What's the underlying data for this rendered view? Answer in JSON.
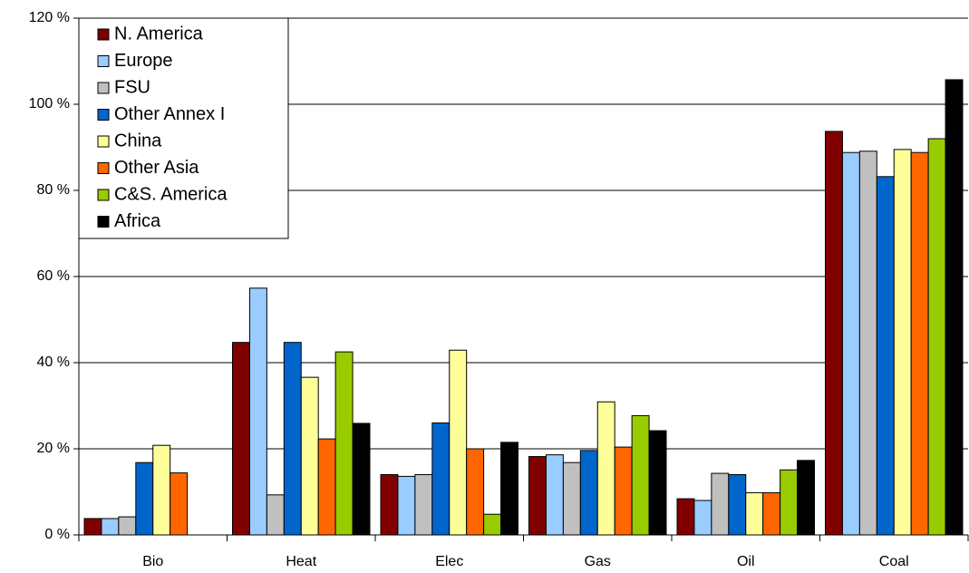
{
  "chart_data": {
    "type": "bar",
    "categories": [
      "Bio",
      "Heat",
      "Elec",
      "Gas",
      "Oil",
      "Coal"
    ],
    "series": [
      {
        "name": "N. America",
        "color": "#800000",
        "values": [
          3.8,
          44.7,
          14.0,
          18.2,
          8.4,
          93.7
        ]
      },
      {
        "name": "Europe",
        "color": "#99ccff",
        "values": [
          3.8,
          57.3,
          13.6,
          18.6,
          8.0,
          88.8
        ]
      },
      {
        "name": "FSU",
        "color": "#c0c0c0",
        "values": [
          4.2,
          9.3,
          14.0,
          16.8,
          14.3,
          89.1
        ]
      },
      {
        "name": "Other Annex I",
        "color": "#0066cc",
        "values": [
          16.8,
          44.7,
          26.0,
          19.6,
          14.0,
          83.2
        ]
      },
      {
        "name": "China",
        "color": "#ffff99",
        "values": [
          20.8,
          36.6,
          42.9,
          30.9,
          9.8,
          89.5
        ]
      },
      {
        "name": "Other Asia",
        "color": "#ff6600",
        "values": [
          14.4,
          22.3,
          20.0,
          20.4,
          9.8,
          88.8
        ]
      },
      {
        "name": "C&S. America",
        "color": "#99cc00",
        "values": [
          0,
          42.5,
          4.8,
          27.7,
          15.1,
          92.0
        ]
      },
      {
        "name": "Africa",
        "color": "#000000",
        "values": [
          0,
          25.9,
          21.5,
          24.2,
          17.3,
          105.7
        ]
      }
    ],
    "ylim": [
      0,
      120
    ],
    "yticks": [
      {
        "value": 0,
        "label": "0 %"
      },
      {
        "value": 20,
        "label": "20 %"
      },
      {
        "value": 40,
        "label": "40 %"
      },
      {
        "value": 60,
        "label": "60 %"
      },
      {
        "value": 80,
        "label": "80 %"
      },
      {
        "value": 100,
        "label": "100 %"
      },
      {
        "value": 120,
        "label": "120 %"
      }
    ],
    "grid": true,
    "legend": "top-left"
  }
}
